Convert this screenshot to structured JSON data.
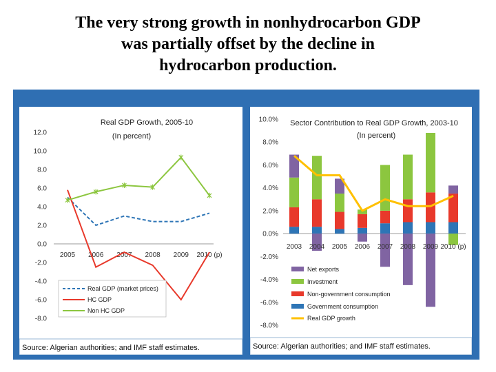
{
  "slide": {
    "title_lines": [
      "The very strong growth in nonhydrocarbon GDP",
      "was partially offset by the decline in",
      "hydrocarbon production."
    ]
  },
  "colors": {
    "panel_background": "#2f6fb3",
    "real_gdp": "#2e75b6",
    "hc_gdp": "#e8392b",
    "non_hc_gdp": "#8cc63f",
    "net_exports": "#8064a2",
    "investment": "#8cc63f",
    "non_gov_consumption": "#e8392b",
    "gov_consumption": "#2e75b6",
    "real_gdp_growth": "#ffc000"
  },
  "chart_data": [
    {
      "type": "line",
      "title": "Real GDP Growth, 2005-10",
      "subtitle": "(In percent)",
      "categories": [
        "2005",
        "2006",
        "2007",
        "2008",
        "2009",
        "2010 (p)"
      ],
      "y_ticks": [
        "12.0",
        "10.0",
        "8.0",
        "6.0",
        "4.0",
        "2.0",
        "0.0",
        "-2.0",
        "-4.0",
        "-6.0",
        "-8.0"
      ],
      "ylim": [
        -8,
        12
      ],
      "series": [
        {
          "name": "Real GDP (market prices)",
          "style": "dashed",
          "values": [
            5.0,
            2.0,
            3.0,
            2.4,
            2.4,
            3.3
          ]
        },
        {
          "name": "HC GDP",
          "style": "solid",
          "values": [
            5.8,
            -2.5,
            -0.9,
            -2.3,
            -6.0,
            -0.9
          ]
        },
        {
          "name": "Non HC GDP",
          "style": "solid-markers",
          "values": [
            4.7,
            5.6,
            6.3,
            6.1,
            9.3,
            5.2
          ]
        }
      ],
      "legend_position": "bottom-left",
      "source": "Source: Algerian authorities; and IMF staff estimates."
    },
    {
      "type": "bar",
      "stacked": true,
      "title": "Sector Contribution to Real GDP Growth, 2003-10",
      "subtitle": "(In percent)",
      "categories": [
        "2003",
        "2004",
        "2005",
        "2006",
        "2007",
        "2008",
        "2009",
        "2010 (p)"
      ],
      "y_ticks": [
        "10.0%",
        "8.0%",
        "6.0%",
        "4.0%",
        "2.0%",
        "0.0%",
        "-2.0%",
        "-4.0%",
        "-6.0%",
        "-8.0%"
      ],
      "ylim": [
        -8,
        10
      ],
      "series": [
        {
          "name": "Net exports",
          "values": [
            2.0,
            -1.5,
            1.3,
            -0.7,
            -2.9,
            -4.5,
            -6.4,
            0.7
          ]
        },
        {
          "name": "Investment",
          "values": [
            2.6,
            3.8,
            1.6,
            0.4,
            4.0,
            3.9,
            5.2,
            -1.0
          ]
        },
        {
          "name": "Non-government consumption",
          "values": [
            1.7,
            2.4,
            1.5,
            1.2,
            1.1,
            2.0,
            2.6,
            2.5
          ]
        },
        {
          "name": "Government consumption",
          "values": [
            0.6,
            0.6,
            0.4,
            0.5,
            0.9,
            1.0,
            1.0,
            1.0
          ]
        }
      ],
      "line": {
        "name": "Real GDP growth",
        "values": [
          6.8,
          5.1,
          5.1,
          2.0,
          3.0,
          2.4,
          2.4,
          3.3
        ]
      },
      "legend_position": "bottom",
      "source": "Source: Algerian authorities; and IMF staff estimates."
    }
  ]
}
